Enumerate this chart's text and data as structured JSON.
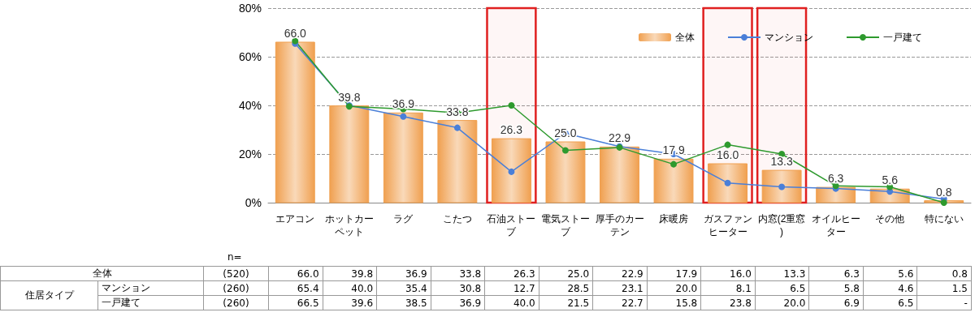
{
  "chart_data": {
    "type": "bar",
    "categories": [
      "エアコン",
      "ホットカーペット",
      "ラグ",
      "こたつ",
      "石油ストーブ",
      "電気ストーブ",
      "厚手のカーテン",
      "床暖房",
      "ガスファンヒーター",
      "内窓(2重窓)",
      "オイルヒーター",
      "その他",
      "特にない"
    ],
    "series": [
      {
        "name": "全体",
        "color": "#f0a050",
        "values": [
          66.0,
          39.8,
          36.9,
          33.8,
          26.3,
          25.0,
          22.9,
          17.9,
          16.0,
          13.3,
          6.3,
          5.6,
          0.8
        ],
        "value_labels": [
          "66.0",
          "39.8",
          "36.9",
          "33.8",
          "26.3",
          "25.0",
          "22.9",
          "17.9",
          "16.0",
          "13.3",
          "6.3",
          "5.6",
          "0.8"
        ]
      },
      {
        "name": "マンション",
        "type": "line",
        "color": "#4a7fd8",
        "values": [
          65.4,
          40.0,
          35.4,
          30.8,
          12.7,
          28.5,
          23.1,
          20.0,
          8.1,
          6.5,
          5.8,
          4.6,
          1.5
        ],
        "value_labels": [
          "65.4",
          "40.0",
          "35.4",
          "30.8",
          "12.7",
          "28.5",
          "23.1",
          "20.0",
          "8.1",
          "6.5",
          "5.8",
          "4.6",
          "1.5"
        ]
      },
      {
        "name": "一戸建て",
        "type": "line",
        "color": "#2e9a2e",
        "values": [
          66.5,
          39.6,
          38.5,
          36.9,
          40.0,
          21.5,
          22.7,
          15.8,
          23.8,
          20.0,
          6.9,
          6.5,
          0
        ],
        "value_labels": [
          "66.5",
          "39.6",
          "38.5",
          "36.9",
          "40.0",
          "21.5",
          "22.7",
          "15.8",
          "23.8",
          "20.0",
          "6.9",
          "6.5",
          "-"
        ]
      }
    ],
    "ylim": [
      0,
      80
    ],
    "yticks": [
      {
        "value": 0,
        "label": "0%"
      },
      {
        "value": 20,
        "label": "20%"
      },
      {
        "value": 40,
        "label": "40%"
      },
      {
        "value": 60,
        "label": "60%"
      },
      {
        "value": 80,
        "label": "80%"
      }
    ],
    "grid": "y",
    "legend": "top right",
    "marker": "circle",
    "line_style": "solid",
    "bands": [
      {
        "axis": "x",
        "from": "石油ストーブ",
        "to": "石油ストーブ",
        "color": "#e02020"
      },
      {
        "axis": "x",
        "from": "ガスファンヒーター",
        "to": "ガスファンヒーター",
        "color": "#e02020"
      },
      {
        "axis": "x",
        "from": "内窓(2重窓)",
        "to": "内窓(2重窓)",
        "color": "#e02020"
      }
    ],
    "annotations": [
      "n=",
      "住居タイプ",
      "(520)",
      "(260)",
      "(260)"
    ]
  }
}
